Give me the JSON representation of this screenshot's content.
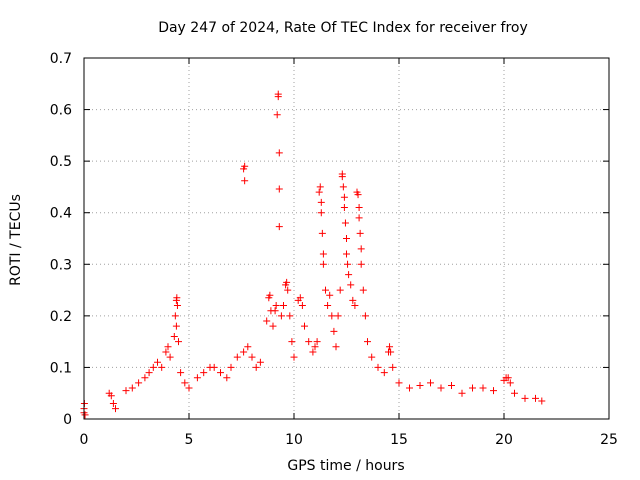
{
  "chart_data": {
    "type": "scatter",
    "title": "Day 247 of 2024, Rate Of TEC Index for receiver froy",
    "xlabel": "GPS time / hours",
    "ylabel": "ROTI / TECUs",
    "xlim": [
      0,
      25
    ],
    "ylim": [
      0,
      0.7
    ],
    "x_ticks": [
      0,
      5,
      10,
      15,
      20,
      25
    ],
    "y_ticks": [
      0,
      0.1,
      0.2,
      0.3,
      0.4,
      0.5,
      0.6,
      0.7
    ],
    "x_tick_labels": [
      "0",
      "5",
      "10",
      "15",
      "20",
      "25"
    ],
    "y_tick_labels": [
      "0",
      "0.1",
      "0.2",
      "0.3",
      "0.4",
      "0.5",
      "0.6",
      "0.7"
    ],
    "grid": true,
    "marker": "+",
    "color": "#ff0000",
    "series": [
      {
        "points": [
          [
            0.0,
            0.02
          ],
          [
            0.0,
            0.012
          ],
          [
            0.02,
            0.03
          ],
          [
            0.05,
            0.008
          ],
          [
            1.2,
            0.05
          ],
          [
            1.3,
            0.045
          ],
          [
            1.4,
            0.03
          ],
          [
            1.5,
            0.02
          ],
          [
            2.0,
            0.055
          ],
          [
            2.3,
            0.06
          ],
          [
            2.6,
            0.07
          ],
          [
            2.9,
            0.08
          ],
          [
            3.1,
            0.09
          ],
          [
            3.3,
            0.1
          ],
          [
            3.5,
            0.11
          ],
          [
            3.7,
            0.1
          ],
          [
            3.9,
            0.13
          ],
          [
            4.0,
            0.14
          ],
          [
            4.1,
            0.12
          ],
          [
            4.3,
            0.16
          ],
          [
            4.35,
            0.2
          ],
          [
            4.4,
            0.23
          ],
          [
            4.42,
            0.235
          ],
          [
            4.45,
            0.22
          ],
          [
            4.4,
            0.18
          ],
          [
            4.5,
            0.15
          ],
          [
            4.6,
            0.09
          ],
          [
            4.8,
            0.07
          ],
          [
            5.0,
            0.06
          ],
          [
            5.4,
            0.08
          ],
          [
            5.7,
            0.09
          ],
          [
            6.0,
            0.1
          ],
          [
            6.2,
            0.1
          ],
          [
            6.5,
            0.09
          ],
          [
            6.8,
            0.08
          ],
          [
            7.0,
            0.1
          ],
          [
            7.3,
            0.12
          ],
          [
            7.6,
            0.13
          ],
          [
            7.6,
            0.485
          ],
          [
            7.65,
            0.49
          ],
          [
            7.65,
            0.462
          ],
          [
            7.8,
            0.14
          ],
          [
            8.0,
            0.12
          ],
          [
            8.2,
            0.1
          ],
          [
            8.4,
            0.11
          ],
          [
            8.7,
            0.19
          ],
          [
            8.8,
            0.235
          ],
          [
            8.85,
            0.24
          ],
          [
            8.9,
            0.21
          ],
          [
            9.0,
            0.18
          ],
          [
            9.1,
            0.21
          ],
          [
            9.15,
            0.22
          ],
          [
            9.2,
            0.59
          ],
          [
            9.25,
            0.625
          ],
          [
            9.25,
            0.63
          ],
          [
            9.3,
            0.516
          ],
          [
            9.3,
            0.446
          ],
          [
            9.3,
            0.373
          ],
          [
            9.4,
            0.2
          ],
          [
            9.5,
            0.22
          ],
          [
            9.6,
            0.26
          ],
          [
            9.65,
            0.265
          ],
          [
            9.7,
            0.25
          ],
          [
            9.8,
            0.2
          ],
          [
            9.9,
            0.15
          ],
          [
            10.0,
            0.12
          ],
          [
            10.2,
            0.23
          ],
          [
            10.3,
            0.235
          ],
          [
            10.4,
            0.22
          ],
          [
            10.5,
            0.18
          ],
          [
            10.7,
            0.15
          ],
          [
            10.9,
            0.13
          ],
          [
            11.0,
            0.14
          ],
          [
            11.1,
            0.15
          ],
          [
            11.2,
            0.44
          ],
          [
            11.25,
            0.45
          ],
          [
            11.3,
            0.42
          ],
          [
            11.3,
            0.4
          ],
          [
            11.35,
            0.36
          ],
          [
            11.4,
            0.32
          ],
          [
            11.4,
            0.3
          ],
          [
            11.5,
            0.25
          ],
          [
            11.6,
            0.22
          ],
          [
            11.7,
            0.24
          ],
          [
            11.8,
            0.2
          ],
          [
            11.9,
            0.17
          ],
          [
            12.0,
            0.14
          ],
          [
            12.1,
            0.2
          ],
          [
            12.2,
            0.25
          ],
          [
            12.3,
            0.47
          ],
          [
            12.3,
            0.475
          ],
          [
            12.35,
            0.45
          ],
          [
            12.4,
            0.43
          ],
          [
            12.4,
            0.41
          ],
          [
            12.45,
            0.38
          ],
          [
            12.5,
            0.35
          ],
          [
            12.5,
            0.32
          ],
          [
            12.55,
            0.3
          ],
          [
            12.6,
            0.28
          ],
          [
            12.7,
            0.26
          ],
          [
            12.8,
            0.23
          ],
          [
            12.9,
            0.22
          ],
          [
            13.0,
            0.44
          ],
          [
            13.05,
            0.435
          ],
          [
            13.1,
            0.41
          ],
          [
            13.1,
            0.39
          ],
          [
            13.15,
            0.36
          ],
          [
            13.2,
            0.33
          ],
          [
            13.2,
            0.3
          ],
          [
            13.3,
            0.25
          ],
          [
            13.4,
            0.2
          ],
          [
            13.5,
            0.15
          ],
          [
            13.7,
            0.12
          ],
          [
            14.0,
            0.1
          ],
          [
            14.3,
            0.09
          ],
          [
            14.5,
            0.13
          ],
          [
            14.55,
            0.14
          ],
          [
            14.6,
            0.13
          ],
          [
            14.7,
            0.1
          ],
          [
            15.0,
            0.07
          ],
          [
            15.5,
            0.06
          ],
          [
            16.0,
            0.065
          ],
          [
            16.5,
            0.07
          ],
          [
            17.0,
            0.06
          ],
          [
            17.5,
            0.065
          ],
          [
            18.0,
            0.05
          ],
          [
            18.5,
            0.06
          ],
          [
            19.0,
            0.06
          ],
          [
            19.5,
            0.055
          ],
          [
            20.0,
            0.075
          ],
          [
            20.1,
            0.08
          ],
          [
            20.2,
            0.08
          ],
          [
            20.3,
            0.07
          ],
          [
            20.5,
            0.05
          ],
          [
            21.0,
            0.04
          ],
          [
            21.5,
            0.04
          ],
          [
            21.8,
            0.035
          ]
        ]
      }
    ]
  }
}
